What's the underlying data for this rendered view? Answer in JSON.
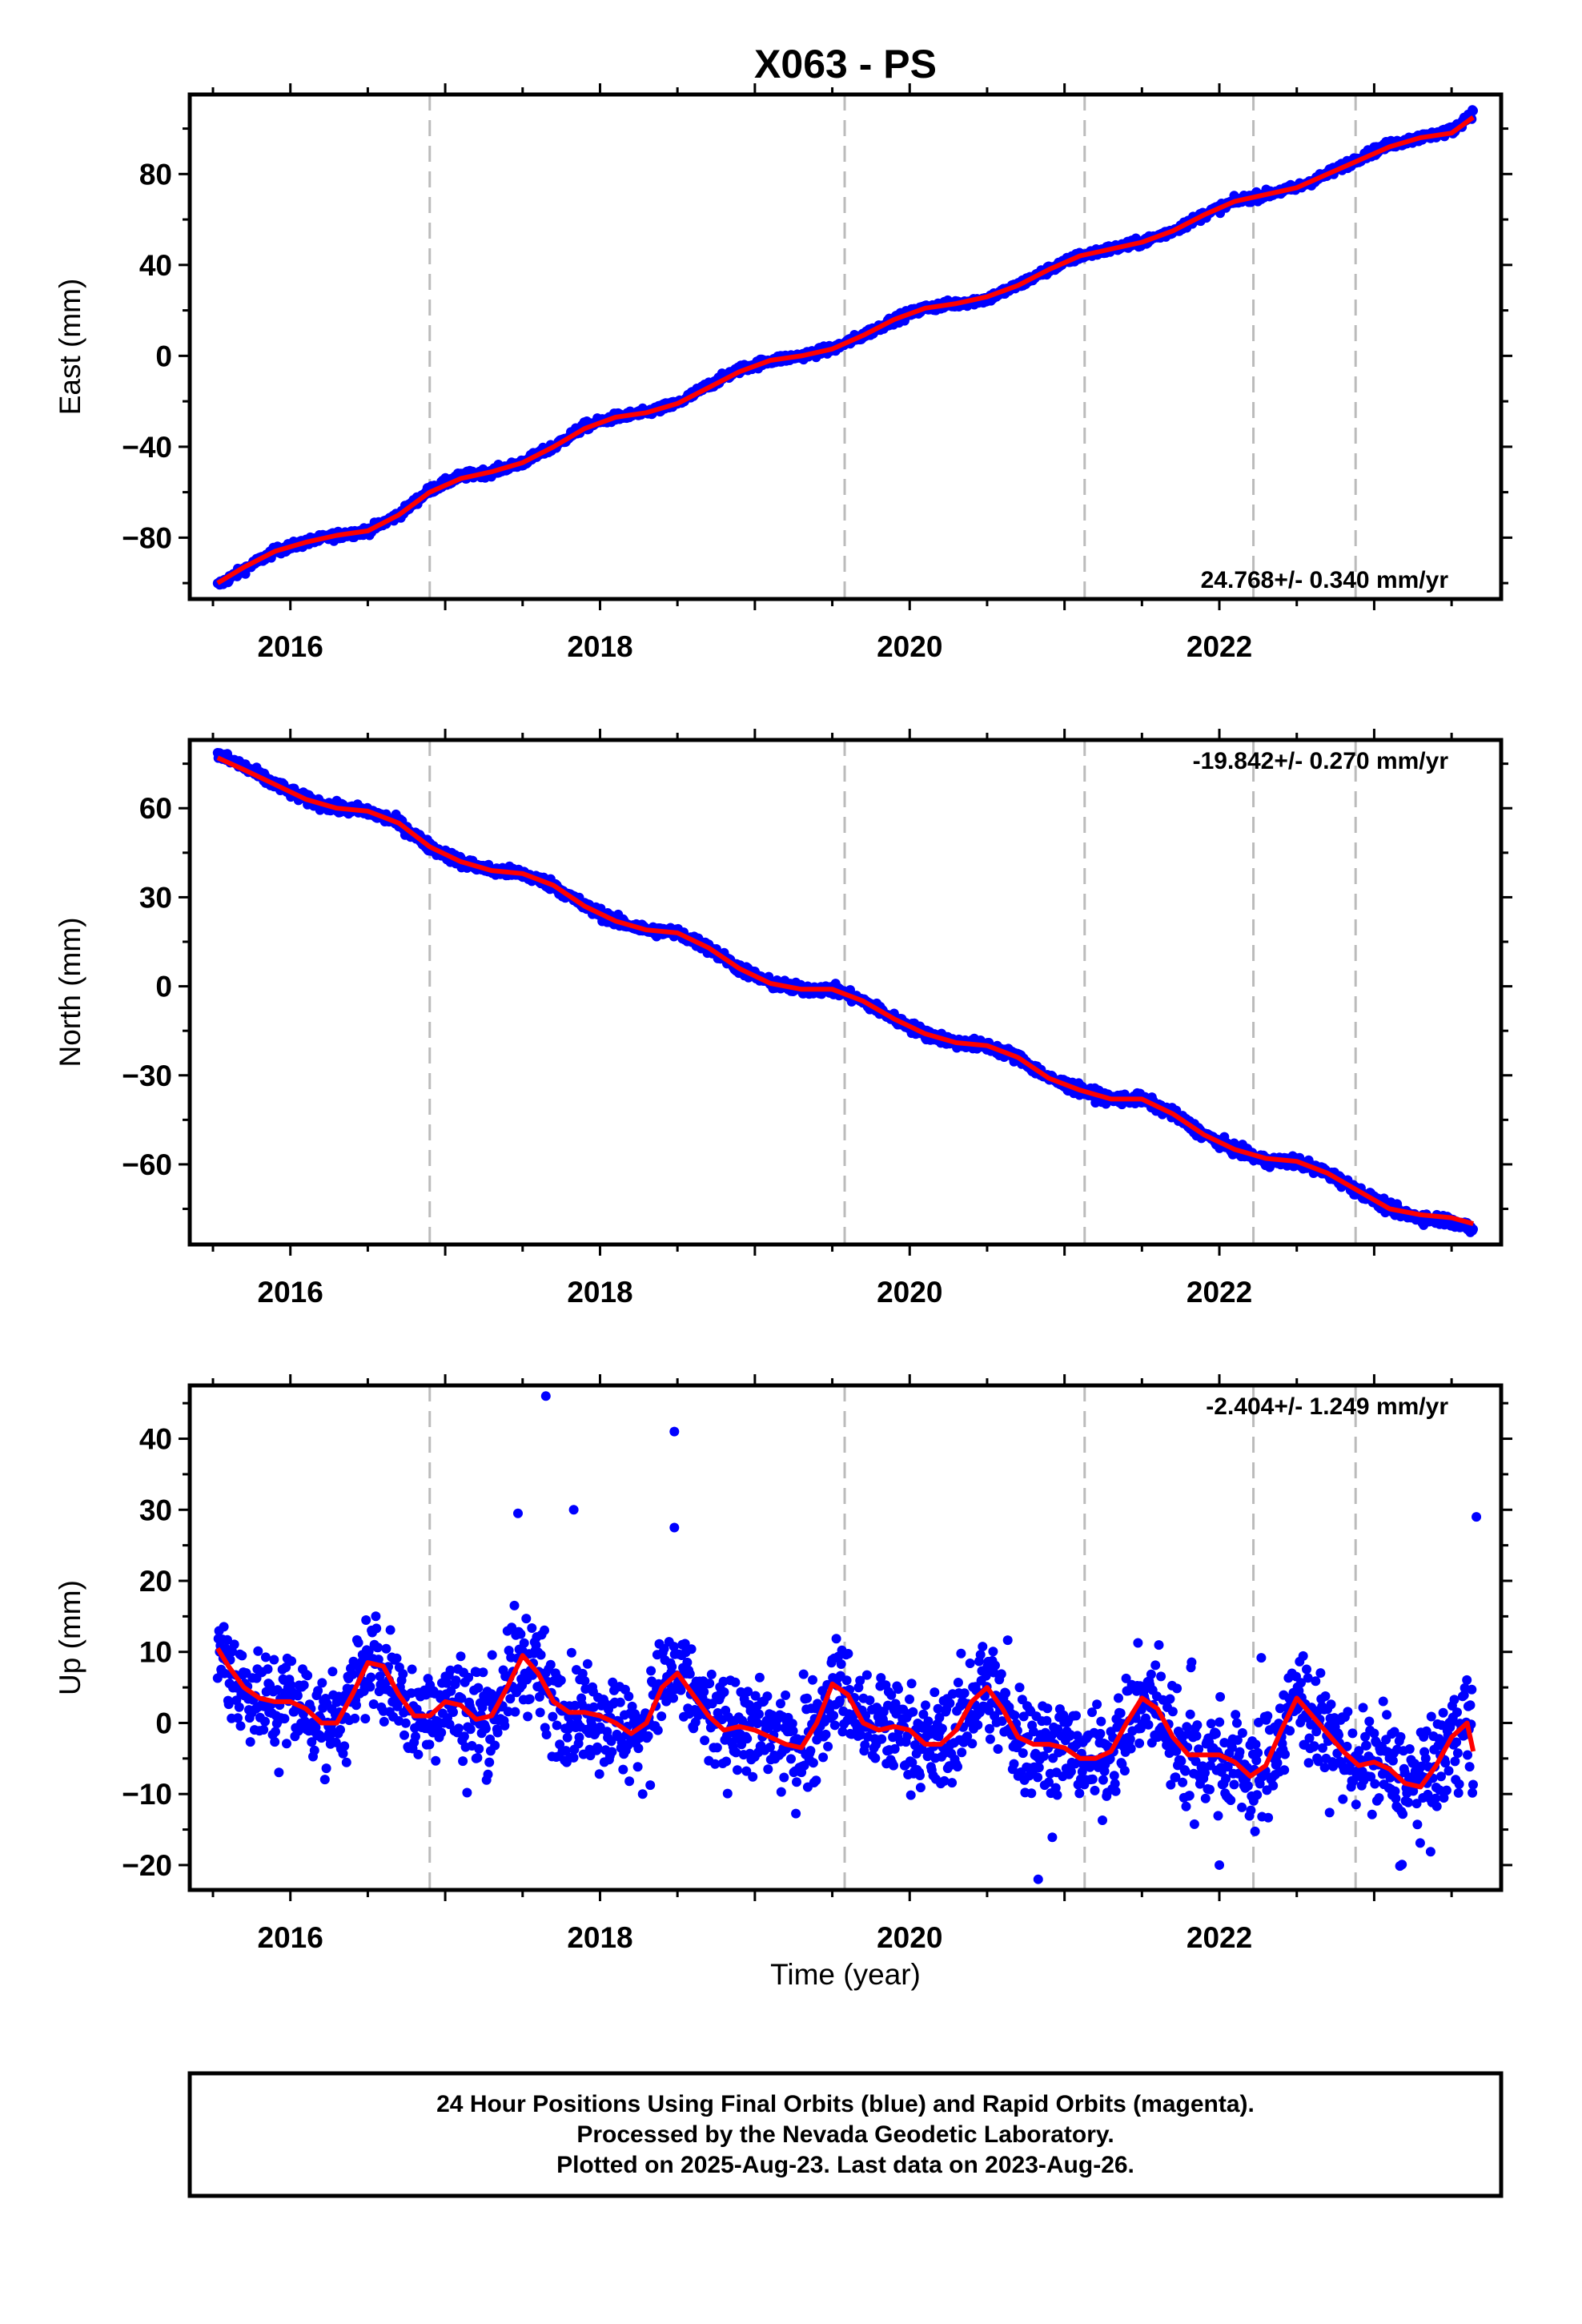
{
  "title": "X063 - PS",
  "xlabel": "Time (year)",
  "footer": {
    "line1": "24 Hour Positions Using Final Orbits (blue) and Rapid Orbits (magenta).",
    "line2": "Processed by the Nevada Geodetic Laboratory.",
    "line3": "Plotted on 2025-Aug-23. Last data on 2023-Aug-26."
  },
  "colors": {
    "final_orbit_points": "#0000ff",
    "model_fit": "#ff0000",
    "event_lines": "#bbbbbb"
  },
  "chart_data": [
    {
      "type": "scatter",
      "ylabel": "East (mm)",
      "rate_label": "24.768+/- 0.340 mm/yr",
      "xlim": [
        2015.35,
        2023.82
      ],
      "ylim": [
        -107,
        115
      ],
      "yticks": [
        -80,
        -40,
        0,
        40,
        80
      ],
      "xticks": [
        2016,
        2018,
        2020,
        2022
      ],
      "event_lines": [
        2016.9,
        2019.58,
        2021.13,
        2022.22,
        2022.88
      ],
      "series": [
        {
          "name": "Final Orbits",
          "x": [
            2015.53,
            2015.7,
            2015.9,
            2016.1,
            2016.3,
            2016.5,
            2016.7,
            2016.9,
            2017.1,
            2017.3,
            2017.5,
            2017.7,
            2017.9,
            2018.1,
            2018.3,
            2018.5,
            2018.7,
            2018.9,
            2019.1,
            2019.3,
            2019.5,
            2019.7,
            2019.9,
            2020.1,
            2020.3,
            2020.5,
            2020.7,
            2020.9,
            2021.1,
            2021.3,
            2021.5,
            2021.7,
            2021.9,
            2022.1,
            2022.3,
            2022.5,
            2022.7,
            2022.9,
            2023.1,
            2023.3,
            2023.5,
            2023.64
          ],
          "y": [
            -101,
            -94,
            -86,
            -82,
            -79,
            -77,
            -70,
            -59,
            -53,
            -51,
            -47,
            -40,
            -31,
            -27,
            -25,
            -21,
            -13,
            -6,
            -2,
            0,
            3,
            9,
            16,
            21,
            23,
            25,
            31,
            38,
            44,
            47,
            50,
            55,
            62,
            68,
            71,
            74,
            80,
            87,
            93,
            96,
            99,
            107
          ]
        },
        {
          "name": "Model fit",
          "x": [
            2015.53,
            2015.7,
            2015.9,
            2016.1,
            2016.3,
            2016.5,
            2016.7,
            2016.9,
            2017.1,
            2017.3,
            2017.5,
            2017.7,
            2017.9,
            2018.1,
            2018.3,
            2018.5,
            2018.7,
            2018.9,
            2019.1,
            2019.3,
            2019.5,
            2019.7,
            2019.9,
            2020.1,
            2020.3,
            2020.5,
            2020.7,
            2020.9,
            2021.1,
            2021.3,
            2021.5,
            2021.7,
            2021.9,
            2022.1,
            2022.3,
            2022.5,
            2022.7,
            2022.9,
            2023.1,
            2023.3,
            2023.5,
            2023.64
          ],
          "y": [
            -100,
            -93,
            -86,
            -82,
            -79,
            -77,
            -70,
            -60,
            -54,
            -51,
            -47,
            -40,
            -32,
            -27,
            -25,
            -21,
            -14,
            -7,
            -2,
            0,
            3,
            9,
            16,
            21,
            23,
            26,
            31,
            38,
            44,
            47,
            50,
            55,
            62,
            68,
            71,
            74,
            80,
            86,
            92,
            96,
            98,
            105
          ]
        }
      ]
    },
    {
      "type": "scatter",
      "ylabel": "North (mm)",
      "rate_label": "-19.842+/- 0.270 mm/yr",
      "xlim": [
        2015.35,
        2023.82
      ],
      "ylim": [
        -87,
        83
      ],
      "yticks": [
        -60,
        -30,
        0,
        30,
        60
      ],
      "xticks": [
        2016,
        2018,
        2020,
        2022
      ],
      "event_lines": [
        2016.9,
        2019.58,
        2021.13,
        2022.22,
        2022.88
      ],
      "series": [
        {
          "name": "Final Orbits",
          "x": [
            2015.53,
            2015.7,
            2015.9,
            2016.1,
            2016.3,
            2016.5,
            2016.7,
            2016.9,
            2017.1,
            2017.3,
            2017.5,
            2017.7,
            2017.9,
            2018.1,
            2018.3,
            2018.5,
            2018.7,
            2018.9,
            2019.1,
            2019.3,
            2019.5,
            2019.7,
            2019.9,
            2020.1,
            2020.3,
            2020.5,
            2020.7,
            2020.9,
            2021.1,
            2021.3,
            2021.5,
            2021.7,
            2021.9,
            2022.1,
            2022.3,
            2022.5,
            2022.7,
            2022.9,
            2023.1,
            2023.3,
            2023.5,
            2023.64
          ],
          "y": [
            78,
            74,
            68,
            63,
            60,
            59,
            55,
            47,
            42,
            39,
            38,
            34,
            27,
            22,
            19,
            18,
            13,
            6,
            1,
            -1,
            -1,
            -5,
            -11,
            -16,
            -19,
            -20,
            -24,
            -31,
            -35,
            -38,
            -38,
            -43,
            -50,
            -55,
            -59,
            -59,
            -63,
            -69,
            -75,
            -78,
            -79,
            -82
          ]
        },
        {
          "name": "Model fit",
          "x": [
            2015.53,
            2015.7,
            2015.9,
            2016.1,
            2016.3,
            2016.5,
            2016.7,
            2016.9,
            2017.1,
            2017.3,
            2017.5,
            2017.7,
            2017.9,
            2018.1,
            2018.3,
            2018.5,
            2018.7,
            2018.9,
            2019.1,
            2019.3,
            2019.5,
            2019.7,
            2019.9,
            2020.1,
            2020.3,
            2020.5,
            2020.7,
            2020.9,
            2021.1,
            2021.3,
            2021.5,
            2021.7,
            2021.9,
            2022.1,
            2022.3,
            2022.5,
            2022.7,
            2022.9,
            2023.1,
            2023.3,
            2023.5,
            2023.64
          ],
          "y": [
            77,
            73,
            68,
            63,
            60,
            59,
            55,
            47,
            42,
            39,
            38,
            34,
            27,
            22,
            19,
            18,
            13,
            6,
            1,
            -1,
            -1,
            -5,
            -11,
            -16,
            -19,
            -20,
            -24,
            -31,
            -35,
            -38,
            -38,
            -43,
            -50,
            -55,
            -58,
            -59,
            -63,
            -69,
            -75,
            -77,
            -78,
            -80
          ]
        }
      ]
    },
    {
      "type": "scatter",
      "ylabel": "Up (mm)",
      "rate_label": "-2.404+/- 1.249 mm/yr",
      "xlim": [
        2015.35,
        2023.82
      ],
      "ylim": [
        -23.5,
        47.5
      ],
      "yticks": [
        -20,
        -10,
        0,
        10,
        20,
        30,
        40
      ],
      "xticks": [
        2016,
        2018,
        2020,
        2022
      ],
      "event_lines": [
        2016.9,
        2019.58,
        2021.13,
        2022.22,
        2022.88
      ],
      "outliers": {
        "x": [
          2017.65,
          2018.48,
          2018.48,
          2017.83,
          2017.47,
          2020.83,
          2022.0,
          2023.66
        ],
        "y": [
          46,
          41,
          27.5,
          30,
          29.5,
          -22,
          -20,
          29
        ]
      },
      "series": [
        {
          "name": "Final Orbits",
          "x": [
            2015.53,
            2015.6,
            2015.7,
            2015.8,
            2015.9,
            2016.0,
            2016.1,
            2016.2,
            2016.3,
            2016.4,
            2016.5,
            2016.6,
            2016.7,
            2016.8,
            2016.9,
            2017.0,
            2017.1,
            2017.2,
            2017.3,
            2017.4,
            2017.5,
            2017.6,
            2017.7,
            2017.8,
            2017.9,
            2018.0,
            2018.1,
            2018.2,
            2018.3,
            2018.4,
            2018.5,
            2018.6,
            2018.7,
            2018.8,
            2018.9,
            2019.0,
            2019.1,
            2019.2,
            2019.3,
            2019.4,
            2019.5,
            2019.6,
            2019.7,
            2019.8,
            2019.9,
            2020.0,
            2020.1,
            2020.2,
            2020.3,
            2020.4,
            2020.5,
            2020.6,
            2020.7,
            2020.8,
            2020.9,
            2021.0,
            2021.1,
            2021.2,
            2021.3,
            2021.4,
            2021.5,
            2021.6,
            2021.7,
            2021.8,
            2021.9,
            2022.0,
            2022.1,
            2022.2,
            2022.3,
            2022.4,
            2022.5,
            2022.6,
            2022.7,
            2022.8,
            2022.9,
            2023.0,
            2023.1,
            2023.2,
            2023.3,
            2023.4,
            2023.5,
            2023.6,
            2023.64
          ],
          "y": [
            10.5,
            8,
            5,
            3.5,
            3,
            3,
            2,
            0,
            0,
            4,
            8.5,
            8,
            4,
            1,
            1,
            3,
            2.5,
            0.5,
            1,
            5,
            9.5,
            7,
            3,
            1.5,
            1.5,
            1,
            0,
            -1.5,
            0,
            5,
            7,
            4,
            1,
            -1,
            -0.5,
            -1,
            -2,
            -3,
            -3.5,
            0,
            5.5,
            4,
            0,
            -1,
            -0.5,
            -1,
            -3,
            -3,
            -1,
            3,
            5,
            2,
            -2,
            -3,
            -3,
            -3.5,
            -5,
            -5,
            -4,
            0,
            3.5,
            2,
            -2,
            -4.5,
            -4.5,
            -4.5,
            -5.5,
            -7.5,
            -6,
            -1,
            3.5,
            1,
            -1.5,
            -4,
            -6,
            -5.5,
            -6.5,
            -8.5,
            -9,
            -6,
            -2,
            0,
            -4
          ]
        },
        {
          "name": "Model fit",
          "x": [
            2015.53,
            2015.6,
            2015.7,
            2015.8,
            2015.9,
            2016.0,
            2016.1,
            2016.2,
            2016.3,
            2016.4,
            2016.5,
            2016.6,
            2016.7,
            2016.8,
            2016.9,
            2017.0,
            2017.1,
            2017.2,
            2017.3,
            2017.4,
            2017.5,
            2017.6,
            2017.7,
            2017.8,
            2017.9,
            2018.0,
            2018.1,
            2018.2,
            2018.3,
            2018.4,
            2018.5,
            2018.6,
            2018.7,
            2018.8,
            2018.9,
            2019.0,
            2019.1,
            2019.2,
            2019.3,
            2019.4,
            2019.5,
            2019.6,
            2019.7,
            2019.8,
            2019.9,
            2020.0,
            2020.1,
            2020.2,
            2020.3,
            2020.4,
            2020.5,
            2020.6,
            2020.7,
            2020.8,
            2020.9,
            2021.0,
            2021.1,
            2021.2,
            2021.3,
            2021.4,
            2021.5,
            2021.6,
            2021.7,
            2021.8,
            2021.9,
            2022.0,
            2022.1,
            2022.2,
            2022.3,
            2022.4,
            2022.5,
            2022.6,
            2022.7,
            2022.8,
            2022.9,
            2023.0,
            2023.1,
            2023.2,
            2023.3,
            2023.4,
            2023.5,
            2023.6,
            2023.64
          ],
          "y": [
            10.5,
            8,
            5,
            3.5,
            3,
            3,
            2,
            0,
            0,
            4,
            8.5,
            8,
            4,
            1,
            1,
            3,
            2.5,
            0.5,
            1,
            5,
            9.5,
            7,
            3,
            1.5,
            1.5,
            1,
            0,
            -1.5,
            0,
            5,
            7,
            4,
            1,
            -1,
            -0.5,
            -1,
            -2,
            -3,
            -3.5,
            0,
            5.5,
            4,
            0,
            -1,
            -0.5,
            -1,
            -3,
            -3,
            -1,
            3,
            5,
            2,
            -2,
            -3,
            -3,
            -3.5,
            -5,
            -5,
            -4,
            0,
            3.5,
            2,
            -2,
            -4.5,
            -4.5,
            -4.5,
            -5.5,
            -7.5,
            -6,
            -1,
            3.5,
            1,
            -1.5,
            -4,
            -6,
            -5.5,
            -6.5,
            -8.5,
            -9,
            -6,
            -2,
            0,
            -4
          ]
        }
      ]
    }
  ]
}
